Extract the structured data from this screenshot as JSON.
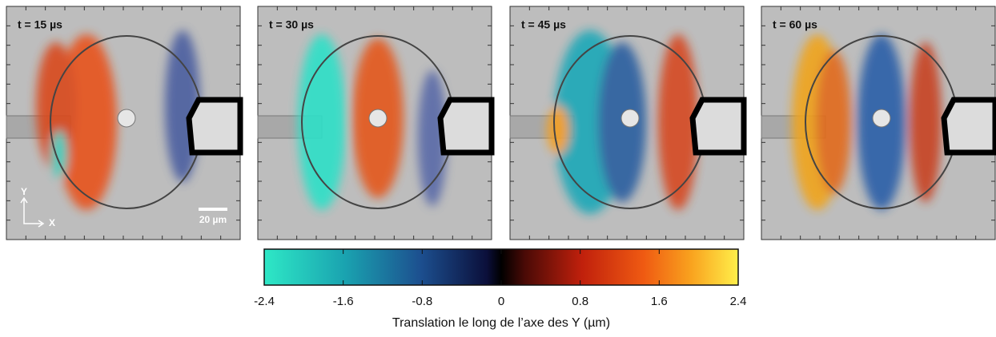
{
  "panels": [
    {
      "label": "t = 15 µs"
    },
    {
      "label": "t = 30 µs"
    },
    {
      "label": "t = 45 µs"
    },
    {
      "label": "t = 60 µs"
    }
  ],
  "scale_bar": "20 µm",
  "axes": {
    "y": "Y",
    "x": "X"
  },
  "colorbar": {
    "lim": [
      -2.4,
      2.4
    ],
    "ticks": [
      -2.4,
      -1.6,
      -0.8,
      0,
      0.8,
      1.6,
      2.4
    ],
    "label": "Translation le long de l’axe des Y (µm)"
  }
}
